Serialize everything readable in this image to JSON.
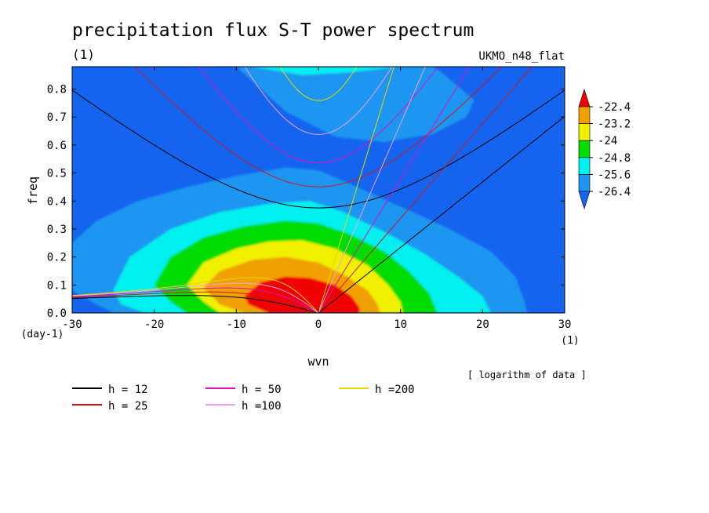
{
  "chart_data": {
    "type": "heatmap",
    "title": "precipitation flux S-T power spectrum",
    "subtitle": "(1)",
    "model_label": "UKMO_n48_flat",
    "xlabel": "wvn",
    "ylabel": "freq",
    "x_unit": "(1)",
    "y_unit": "(day-1)",
    "xlim": [
      -30,
      30
    ],
    "ylim": [
      0,
      0.88
    ],
    "x_ticks": [
      -30,
      -20,
      -10,
      0,
      10,
      20,
      30
    ],
    "x_tick_labels": [
      "-30",
      "-20",
      "-10",
      "0",
      "10",
      "20",
      "30"
    ],
    "y_ticks": [
      0,
      0.1,
      0.2,
      0.3,
      0.4,
      0.5,
      0.6,
      0.7,
      0.8
    ],
    "y_tick_labels": [
      "0.0",
      "0.1",
      "0.2",
      "0.3",
      "0.4",
      "0.5",
      "0.6",
      "0.7",
      "0.8"
    ],
    "data_note": "[ logarithm of data ]",
    "colorbar": {
      "levels": [
        -26.4,
        -25.6,
        -24.8,
        -24,
        -23.2,
        -22.4
      ],
      "labels": [
        "-26.4",
        "-25.6",
        "-24.8",
        "-24",
        "-23.2",
        "-22.4"
      ],
      "colors": [
        "#1464f0",
        "#1e96f0",
        "#00f0f0",
        "#00dc00",
        "#f0f000",
        "#f0a000",
        "#f00000"
      ]
    },
    "dispersion_curves": [
      {
        "label": "h = 12",
        "h": 12,
        "color": "#000000"
      },
      {
        "label": "h = 25",
        "h": 25,
        "color": "#d01818"
      },
      {
        "label": "h = 50",
        "h": 50,
        "color": "#e010c0"
      },
      {
        "label": "h =100",
        "h": 100,
        "color": "#f0a0f0"
      },
      {
        "label": "h =200",
        "h": 200,
        "color": "#e8d800"
      }
    ],
    "grid": false
  }
}
